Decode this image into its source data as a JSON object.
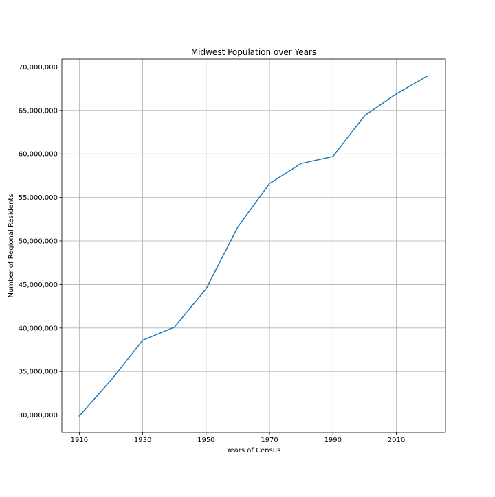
{
  "chart_data": {
    "type": "line",
    "title": "Midwest Population over Years",
    "xlabel": "Years of Census",
    "ylabel": "Number of Regional Residents",
    "xlim": [
      1904.5,
      2025.5
    ],
    "ylim": [
      28000000,
      70900000
    ],
    "xticks": [
      1910,
      1930,
      1950,
      1970,
      1990,
      2010
    ],
    "xtick_labels": [
      "1910",
      "1930",
      "1950",
      "1970",
      "1990",
      "2010"
    ],
    "yticks": [
      30000000,
      35000000,
      40000000,
      45000000,
      50000000,
      55000000,
      60000000,
      65000000,
      70000000
    ],
    "ytick_labels": [
      "30,000,000",
      "35,000,000",
      "40,000,000",
      "45,000,000",
      "50,000,000",
      "55,000,000",
      "60,000,000",
      "65,000,000",
      "70,000,000"
    ],
    "grid": true,
    "series": [
      {
        "color": "#1f77b4",
        "x": [
          1910,
          1920,
          1930,
          1940,
          1950,
          1960,
          1970,
          1980,
          1990,
          2000,
          2010,
          2020
        ],
        "y": [
          29900000,
          34000000,
          38600000,
          40100000,
          44500000,
          51600000,
          56600000,
          58900000,
          59700000,
          64400000,
          66900000,
          69000000
        ]
      }
    ]
  }
}
